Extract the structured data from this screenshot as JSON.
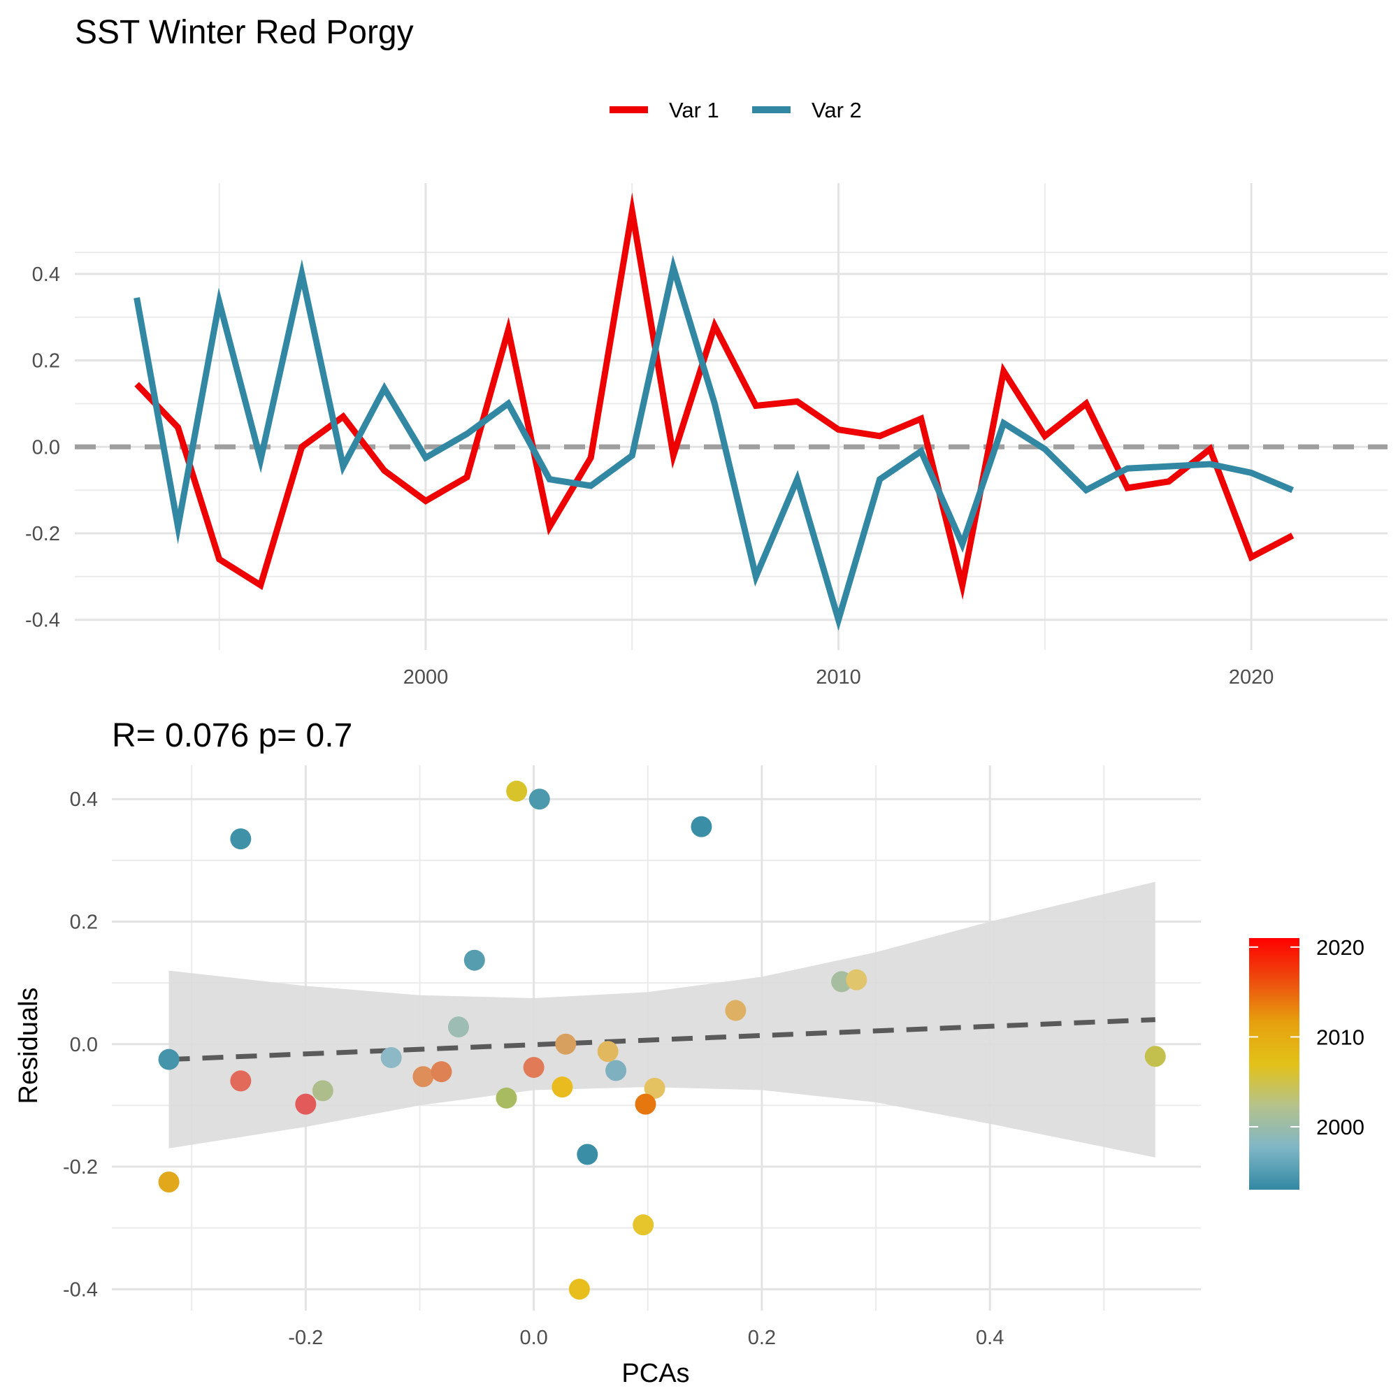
{
  "chart_data": [
    {
      "type": "line",
      "title": "SST Winter  Red Porgy",
      "xlabel": "",
      "ylabel": "",
      "xlim": [
        1991.5,
        2023.3
      ],
      "ylim": [
        -0.47,
        0.61
      ],
      "x_ticks": [
        2000,
        2010,
        2020
      ],
      "x_tick_labels": [
        "2000",
        "2010",
        "2020"
      ],
      "y_ticks": [
        -0.4,
        -0.2,
        0.0,
        0.2,
        0.4
      ],
      "y_tick_labels": [
        "-0.4",
        "-0.2",
        "0.0",
        "0.2",
        "0.4"
      ],
      "grid": true,
      "legend_position": "top",
      "reference_line": {
        "y": 0,
        "style": "dashed",
        "color": "#9e9e9e"
      },
      "x": [
        1993,
        1994,
        1995,
        1996,
        1997,
        1998,
        1999,
        2000,
        2001,
        2002,
        2003,
        2004,
        2005,
        2006,
        2007,
        2008,
        2009,
        2010,
        2011,
        2012,
        2013,
        2014,
        2015,
        2016,
        2017,
        2018,
        2019,
        2020,
        2021
      ],
      "series": [
        {
          "name": "Var 1",
          "color": "#ee0000",
          "values": [
            0.145,
            0.045,
            -0.26,
            -0.32,
            0.0,
            0.07,
            -0.055,
            -0.125,
            -0.07,
            0.27,
            -0.185,
            -0.025,
            0.545,
            -0.02,
            0.28,
            0.095,
            0.105,
            0.04,
            0.025,
            0.065,
            -0.32,
            0.175,
            0.025,
            0.1,
            -0.095,
            -0.08,
            -0.005,
            -0.255,
            -0.205
          ]
        },
        {
          "name": "Var 2",
          "color": "#3288a3",
          "values": [
            0.345,
            -0.185,
            0.335,
            -0.03,
            0.4,
            -0.045,
            0.135,
            -0.025,
            0.03,
            0.1,
            -0.075,
            -0.09,
            -0.02,
            0.415,
            0.1,
            -0.3,
            -0.075,
            -0.4,
            -0.075,
            -0.01,
            -0.225,
            0.055,
            -0.005,
            -0.1,
            -0.05,
            -0.045,
            -0.04,
            -0.06,
            -0.1
          ]
        }
      ]
    },
    {
      "type": "scatter",
      "title": "R= 0.076  p= 0.7",
      "xlabel": "PCAs",
      "ylabel": "Residuals",
      "xlim": [
        -0.37,
        0.585
      ],
      "ylim": [
        -0.435,
        0.455
      ],
      "x_ticks": [
        -0.2,
        0.0,
        0.2,
        0.4
      ],
      "x_tick_labels": [
        "-0.2",
        "0.0",
        "0.2",
        "0.4"
      ],
      "y_ticks": [
        -0.4,
        -0.2,
        0.0,
        0.2,
        0.4
      ],
      "y_tick_labels": [
        "-0.4",
        "-0.2",
        "0.0",
        "0.2",
        "0.4"
      ],
      "grid": true,
      "regression_line": {
        "x": [
          -0.32,
          0.545
        ],
        "y": [
          -0.025,
          0.04
        ],
        "style": "dashed",
        "color": "#5a5a5a"
      },
      "confidence_band": {
        "x": [
          -0.32,
          -0.2,
          -0.1,
          0.0,
          0.1,
          0.2,
          0.3,
          0.4,
          0.545
        ],
        "upper": [
          0.12,
          0.095,
          0.08,
          0.075,
          0.085,
          0.11,
          0.15,
          0.2,
          0.265
        ],
        "lower": [
          -0.17,
          -0.135,
          -0.1,
          -0.075,
          -0.07,
          -0.075,
          -0.095,
          -0.13,
          -0.185
        ]
      },
      "points": [
        {
          "year": 1993,
          "x": 0.147,
          "y": 0.355,
          "color": "#3a8fa6"
        },
        {
          "year": 1994,
          "x": 0.047,
          "y": -0.18,
          "color": "#3a8fa6"
        },
        {
          "year": 1995,
          "x": -0.257,
          "y": 0.335,
          "color": "#3f91a7"
        },
        {
          "year": 1996,
          "x": -0.32,
          "y": -0.025,
          "color": "#4594aa"
        },
        {
          "year": 1997,
          "x": 0.005,
          "y": 0.4,
          "color": "#4c98ad"
        },
        {
          "year": 1998,
          "x": -0.052,
          "y": 0.137,
          "color": "#569daf"
        },
        {
          "year": 1999,
          "x": 0.072,
          "y": -0.043,
          "color": "#7eb0bf"
        },
        {
          "year": 2000,
          "x": -0.125,
          "y": -0.022,
          "color": "#8cb9c5"
        },
        {
          "year": 2001,
          "x": -0.066,
          "y": 0.028,
          "color": "#9dbcb3"
        },
        {
          "year": 2002,
          "x": 0.27,
          "y": 0.102,
          "color": "#a6bd9f"
        },
        {
          "year": 2003,
          "x": -0.185,
          "y": -0.076,
          "color": "#adbe8c"
        },
        {
          "year": 2004,
          "x": -0.024,
          "y": -0.088,
          "color": "#a8bb60"
        },
        {
          "year": 2005,
          "x": 0.545,
          "y": -0.02,
          "color": "#c3c04e"
        },
        {
          "year": 2006,
          "x": -0.015,
          "y": 0.413,
          "color": "#d9c32a"
        },
        {
          "year": 2007,
          "x": 0.283,
          "y": 0.105,
          "color": "#e0c56c"
        },
        {
          "year": 2008,
          "x": 0.096,
          "y": -0.295,
          "color": "#e6c42c"
        },
        {
          "year": 2009,
          "x": 0.106,
          "y": -0.072,
          "color": "#e4c262"
        },
        {
          "year": 2010,
          "x": 0.04,
          "y": -0.4,
          "color": "#e8be1c"
        },
        {
          "year": 2011,
          "x": 0.025,
          "y": -0.07,
          "color": "#e9bb1f"
        },
        {
          "year": 2012,
          "x": 0.065,
          "y": -0.012,
          "color": "#e2b85f"
        },
        {
          "year": 2013,
          "x": -0.32,
          "y": -0.225,
          "color": "#e1a81c"
        },
        {
          "year": 2014,
          "x": 0.177,
          "y": 0.055,
          "color": "#deb064"
        },
        {
          "year": 2015,
          "x": 0.028,
          "y": 0.0,
          "color": "#d7a05e"
        },
        {
          "year": 2016,
          "x": 0.098,
          "y": -0.098,
          "color": "#e6770e"
        },
        {
          "year": 2017,
          "x": -0.097,
          "y": -0.053,
          "color": "#de8e59"
        },
        {
          "year": 2018,
          "x": -0.081,
          "y": -0.045,
          "color": "#de8253"
        },
        {
          "year": 2019,
          "x": 0.0,
          "y": -0.038,
          "color": "#e07a57"
        },
        {
          "year": 2020,
          "x": -0.257,
          "y": -0.06,
          "color": "#e26a5a"
        },
        {
          "year": 2021,
          "x": -0.2,
          "y": -0.098,
          "color": "#e25a5a"
        }
      ],
      "colorbar": {
        "labels": [
          "2020",
          "2010",
          "2000"
        ],
        "ticks": [
          2020,
          2010,
          2000
        ],
        "range": [
          1993,
          2021
        ],
        "stops": [
          "#3288a3",
          "#7fb6c6",
          "#b4c28c",
          "#e3c118",
          "#e6a00e",
          "#ee4c0e",
          "#ff0000"
        ]
      }
    }
  ]
}
